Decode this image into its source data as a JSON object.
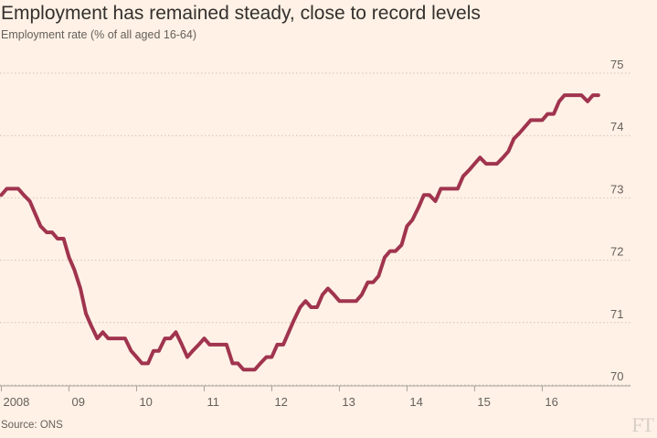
{
  "title": "Employment has remained steady, close to record levels",
  "subtitle": "Employment rate (% of all aged 16-64)",
  "source": "Source: ONS",
  "logo": "FT",
  "colors": {
    "background": "#fff1e5",
    "line": "#a0344f",
    "grid": "#cec6b9",
    "text": "#66605c"
  },
  "chart_data": {
    "type": "line",
    "title": "Employment has remained steady, close to record levels",
    "ylabel": "Employment rate (% of all aged 16-64)",
    "xlabel": "",
    "ylim": [
      70,
      75
    ],
    "yticks": [
      "70",
      "71",
      "72",
      "73",
      "74",
      "75"
    ],
    "xticks": [
      "2008",
      "09",
      "10",
      "11",
      "12",
      "13",
      "14",
      "15",
      "16"
    ],
    "xlim": [
      2008.0,
      2016.9
    ],
    "grid": "horizontal dotted",
    "series": [
      {
        "name": "",
        "x": [
          2008.0,
          2008.08,
          2008.17,
          2008.25,
          2008.33,
          2008.42,
          2008.5,
          2008.58,
          2008.67,
          2008.75,
          2008.83,
          2008.92,
          2009.0,
          2009.08,
          2009.17,
          2009.25,
          2009.33,
          2009.42,
          2009.5,
          2009.58,
          2009.67,
          2009.75,
          2009.83,
          2009.92,
          2010.0,
          2010.08,
          2010.17,
          2010.25,
          2010.33,
          2010.42,
          2010.5,
          2010.58,
          2010.67,
          2010.75,
          2010.83,
          2010.92,
          2011.0,
          2011.08,
          2011.17,
          2011.25,
          2011.33,
          2011.42,
          2011.5,
          2011.58,
          2011.67,
          2011.75,
          2011.83,
          2011.92,
          2012.0,
          2012.08,
          2012.17,
          2012.25,
          2012.33,
          2012.42,
          2012.5,
          2012.58,
          2012.67,
          2012.75,
          2012.83,
          2012.92,
          2013.0,
          2013.08,
          2013.17,
          2013.25,
          2013.33,
          2013.42,
          2013.5,
          2013.58,
          2013.67,
          2013.75,
          2013.83,
          2013.92,
          2014.0,
          2014.08,
          2014.17,
          2014.25,
          2014.33,
          2014.42,
          2014.5,
          2014.58,
          2014.67,
          2014.75,
          2014.83,
          2014.92,
          2015.0,
          2015.08,
          2015.17,
          2015.25,
          2015.33,
          2015.42,
          2015.5,
          2015.58,
          2015.67,
          2015.75,
          2015.83,
          2015.92,
          2016.0,
          2016.08,
          2016.17,
          2016.25,
          2016.33,
          2016.42,
          2016.5,
          2016.58,
          2016.67,
          2016.75,
          2016.83
        ],
        "y": [
          72.9,
          73.0,
          73.0,
          73.0,
          72.9,
          72.8,
          72.6,
          72.4,
          72.3,
          72.3,
          72.2,
          72.2,
          71.9,
          71.7,
          71.4,
          71.0,
          70.8,
          70.6,
          70.7,
          70.6,
          70.6,
          70.6,
          70.6,
          70.4,
          70.3,
          70.2,
          70.2,
          70.4,
          70.4,
          70.6,
          70.6,
          70.7,
          70.5,
          70.3,
          70.4,
          70.5,
          70.6,
          70.5,
          70.5,
          70.5,
          70.5,
          70.2,
          70.2,
          70.1,
          70.1,
          70.1,
          70.2,
          70.3,
          70.3,
          70.5,
          70.5,
          70.7,
          70.9,
          71.1,
          71.2,
          71.1,
          71.1,
          71.3,
          71.4,
          71.3,
          71.2,
          71.2,
          71.2,
          71.2,
          71.3,
          71.5,
          71.5,
          71.6,
          71.9,
          72.0,
          72.0,
          72.1,
          72.4,
          72.5,
          72.7,
          72.9,
          72.9,
          72.8,
          73.0,
          73.0,
          73.0,
          73.0,
          73.2,
          73.3,
          73.4,
          73.5,
          73.4,
          73.4,
          73.4,
          73.5,
          73.6,
          73.8,
          73.9,
          74.0,
          74.1,
          74.1,
          74.1,
          74.2,
          74.2,
          74.4,
          74.5,
          74.5,
          74.5,
          74.5,
          74.4,
          74.5,
          74.5
        ]
      }
    ]
  }
}
